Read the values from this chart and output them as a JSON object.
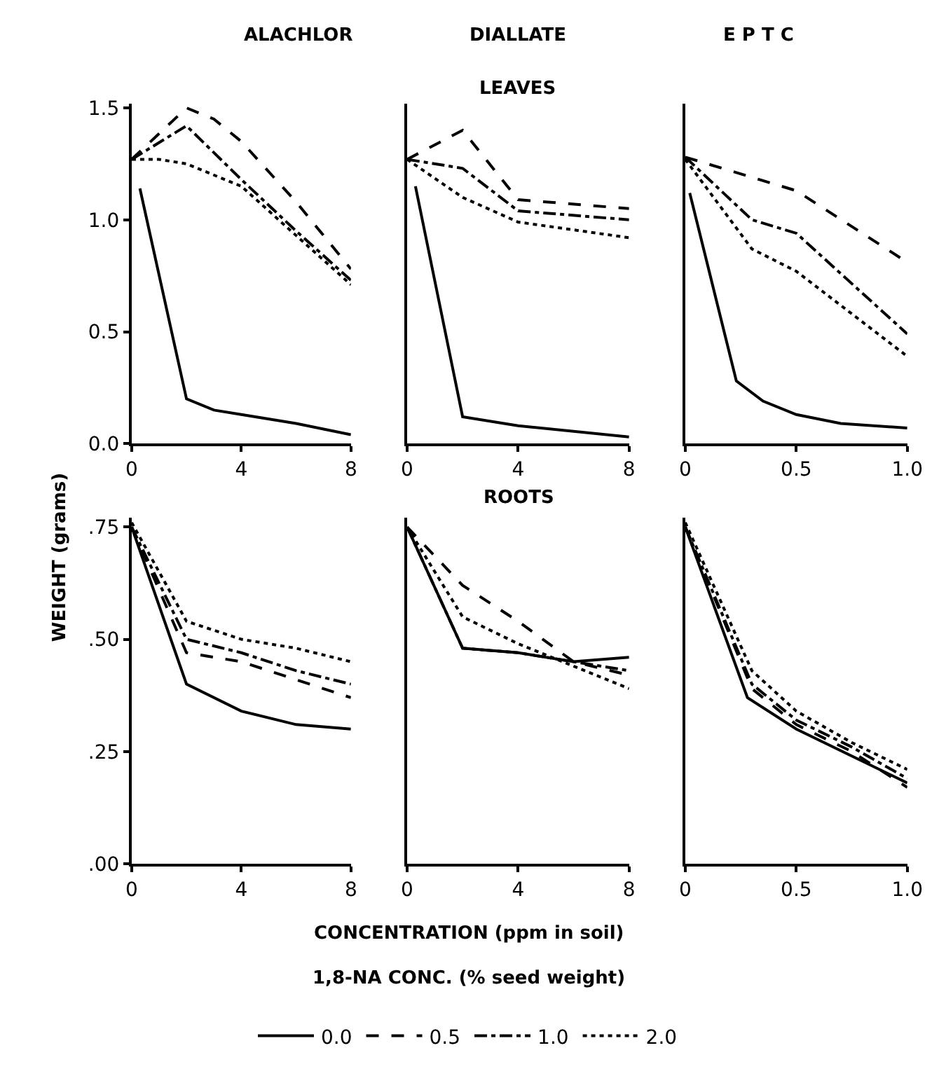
{
  "chart_data": [
    {
      "type": "line",
      "title": "ALACHLOR",
      "ylabel": "WEIGHT (grams)",
      "xlim": [
        0,
        8
      ],
      "xticks": [
        0,
        4,
        8
      ],
      "ylim": [
        0,
        1.52
      ],
      "yticks": [
        {
          "value": 0,
          "label": "0.0"
        },
        0.5,
        {
          "value": 1,
          "label": "1.0"
        },
        1.5
      ],
      "marker": "none",
      "series": [
        {
          "color": "#000000",
          "line_style": "solid",
          "x": [
            0.3,
            2,
            3,
            4,
            6,
            8
          ],
          "values": [
            1.14,
            0.2,
            0.15,
            0.13,
            0.09,
            0.04
          ]
        },
        {
          "color": "#000000",
          "line_style": "dashed",
          "x": [
            0,
            2,
            3,
            4,
            6,
            8
          ],
          "values": [
            1.27,
            1.5,
            1.45,
            1.35,
            1.08,
            0.78
          ]
        },
        {
          "color": "#000000",
          "line_style": "dashdot",
          "x": [
            0,
            2,
            4,
            6,
            8
          ],
          "values": [
            1.27,
            1.42,
            1.18,
            0.95,
            0.73
          ]
        },
        {
          "color": "#000000",
          "line_style": "dotted",
          "x": [
            0,
            1,
            2,
            4,
            6,
            8
          ],
          "values": [
            1.27,
            1.27,
            1.25,
            1.15,
            0.93,
            0.71
          ]
        }
      ]
    },
    {
      "type": "line",
      "title": "DIALLATE",
      "subtitle": "LEAVES",
      "xlim": [
        0,
        8
      ],
      "xticks": [
        0,
        4,
        8
      ],
      "ylim": [
        0,
        1.52
      ],
      "tick_labels": "x",
      "marker": "none",
      "series": [
        {
          "color": "#000000",
          "line_style": "solid",
          "x": [
            0.3,
            2,
            4,
            8
          ],
          "values": [
            1.15,
            0.12,
            0.08,
            0.03
          ]
        },
        {
          "color": "#000000",
          "line_style": "dashed",
          "x": [
            0,
            2,
            4,
            8
          ],
          "values": [
            1.27,
            1.4,
            1.09,
            1.05
          ]
        },
        {
          "color": "#000000",
          "line_style": "dashdot",
          "x": [
            0,
            2,
            4,
            8
          ],
          "values": [
            1.27,
            1.23,
            1.04,
            1.0
          ]
        },
        {
          "color": "#000000",
          "line_style": "dotted",
          "x": [
            0,
            2,
            4,
            8
          ],
          "values": [
            1.27,
            1.1,
            0.99,
            0.92
          ]
        }
      ]
    },
    {
      "type": "line",
      "title": "E P T C",
      "xlim": [
        0,
        1
      ],
      "xticks": [
        0,
        0.5,
        {
          "value": 1,
          "label": "1.0"
        }
      ],
      "ylim": [
        0,
        1.52
      ],
      "tick_labels": "x",
      "marker": "none",
      "series": [
        {
          "color": "#000000",
          "line_style": "solid",
          "x": [
            0.02,
            0.23,
            0.35,
            0.5,
            0.7,
            1.0
          ],
          "values": [
            1.12,
            0.28,
            0.19,
            0.13,
            0.09,
            0.07
          ]
        },
        {
          "color": "#000000",
          "line_style": "dashed",
          "x": [
            0,
            0.5,
            1.0
          ],
          "values": [
            1.28,
            1.13,
            0.81
          ]
        },
        {
          "color": "#000000",
          "line_style": "dashdot",
          "x": [
            0,
            0.3,
            0.5,
            1.0
          ],
          "values": [
            1.28,
            1.0,
            0.94,
            0.49
          ]
        },
        {
          "color": "#000000",
          "line_style": "dotted",
          "x": [
            0,
            0.3,
            0.5,
            0.75,
            1.0
          ],
          "values": [
            1.27,
            0.87,
            0.77,
            0.58,
            0.39
          ]
        }
      ]
    },
    {
      "type": "line",
      "xlim": [
        0,
        8
      ],
      "xticks": [
        0,
        4,
        8
      ],
      "ylim": [
        0,
        0.77
      ],
      "yticks": [
        {
          "value": 0,
          "label": ".00"
        },
        {
          "value": 0.25,
          "label": ".25"
        },
        {
          "value": 0.5,
          "label": ".50"
        },
        {
          "value": 0.75,
          "label": ".75"
        }
      ],
      "marker": "none",
      "series": [
        {
          "color": "#000000",
          "line_style": "solid",
          "x": [
            0,
            2,
            4,
            6,
            8
          ],
          "values": [
            0.75,
            0.4,
            0.34,
            0.31,
            0.3
          ]
        },
        {
          "color": "#000000",
          "line_style": "dashed",
          "x": [
            0,
            2,
            4,
            6,
            8
          ],
          "values": [
            0.75,
            0.47,
            0.45,
            0.41,
            0.37
          ]
        },
        {
          "color": "#000000",
          "line_style": "dashdot",
          "x": [
            0,
            2,
            4,
            6,
            8
          ],
          "values": [
            0.75,
            0.5,
            0.47,
            0.43,
            0.4
          ]
        },
        {
          "color": "#000000",
          "line_style": "dotted",
          "x": [
            0,
            2,
            4,
            6,
            8
          ],
          "values": [
            0.76,
            0.54,
            0.5,
            0.48,
            0.45
          ]
        }
      ]
    },
    {
      "type": "line",
      "title": "ROOTS",
      "xlabel": "CONCENTRATION (ppm in soil)",
      "legend_title": "1,8-NA CONC. (% seed weight)",
      "legend": "bottom",
      "xlim": [
        0,
        8
      ],
      "xticks": [
        0,
        4,
        8
      ],
      "ylim": [
        0,
        0.77
      ],
      "tick_labels": "x",
      "marker": "none",
      "series": [
        {
          "name": "0.0",
          "color": "#000000",
          "line_style": "solid",
          "x": [
            0,
            2,
            4,
            6,
            8
          ],
          "values": [
            0.75,
            0.48,
            0.47,
            0.45,
            0.46
          ]
        },
        {
          "name": "0.5",
          "color": "#000000",
          "line_style": "dashed",
          "x": [
            0,
            2,
            4,
            6,
            8
          ],
          "values": [
            0.75,
            0.62,
            0.54,
            0.45,
            0.42
          ]
        },
        {
          "name": "1.0",
          "color": "#000000",
          "line_style": "dashdot",
          "x": [
            0,
            2,
            4,
            6,
            8
          ],
          "values": [
            0.75,
            0.48,
            0.47,
            0.45,
            0.43
          ]
        },
        {
          "name": "2.0",
          "color": "#000000",
          "line_style": "dotted",
          "x": [
            0,
            2,
            4,
            6,
            8
          ],
          "values": [
            0.75,
            0.55,
            0.49,
            0.44,
            0.39
          ]
        }
      ]
    },
    {
      "type": "line",
      "xlim": [
        0,
        1
      ],
      "xticks": [
        0,
        0.5,
        {
          "value": 1,
          "label": "1.0"
        }
      ],
      "ylim": [
        0,
        0.77
      ],
      "tick_labels": "x",
      "marker": "none",
      "series": [
        {
          "color": "#000000",
          "line_style": "solid",
          "x": [
            0,
            0.28,
            0.5,
            0.75,
            1.0
          ],
          "values": [
            0.75,
            0.37,
            0.3,
            0.24,
            0.18
          ]
        },
        {
          "color": "#000000",
          "line_style": "dashed",
          "x": [
            0,
            0.3,
            0.5,
            0.75,
            1.0
          ],
          "values": [
            0.75,
            0.39,
            0.31,
            0.25,
            0.17
          ]
        },
        {
          "color": "#000000",
          "line_style": "dashdot",
          "x": [
            0,
            0.3,
            0.5,
            0.75,
            1.0
          ],
          "values": [
            0.75,
            0.4,
            0.32,
            0.26,
            0.19
          ]
        },
        {
          "color": "#000000",
          "line_style": "dotted",
          "x": [
            0,
            0.3,
            0.5,
            0.75,
            1.0
          ],
          "values": [
            0.76,
            0.43,
            0.34,
            0.27,
            0.21
          ]
        }
      ]
    }
  ]
}
